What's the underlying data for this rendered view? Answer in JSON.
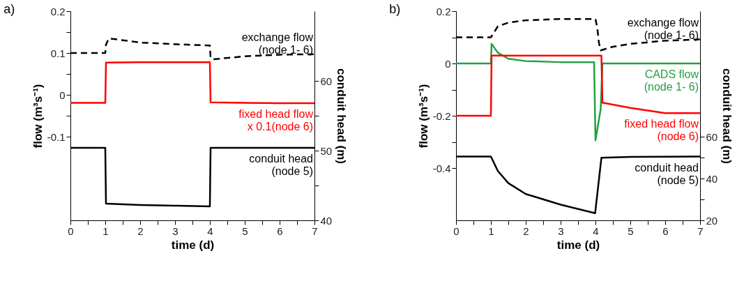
{
  "chart_data": [
    {
      "type": "line",
      "title": "a)",
      "xlabel": "time (d)",
      "ylabel": "flow (m³s⁻¹)",
      "y2label": "conduit head (m)",
      "grid": false,
      "xlim": [
        0,
        7
      ],
      "xticks": [
        0,
        {
          "value": 0.5,
          "label": null
        },
        1,
        {
          "value": 1.5,
          "label": null
        },
        2,
        {
          "value": 2.5,
          "label": null
        },
        3,
        {
          "value": 3.5,
          "label": null
        },
        4,
        {
          "value": 4.5,
          "label": null
        },
        5,
        {
          "value": 5.5,
          "label": null
        },
        6,
        {
          "value": 6.5,
          "label": null
        },
        7
      ],
      "ylim": [
        -0.3,
        0.2
      ],
      "yticks": [
        -0.1,
        {
          "value": -0.05,
          "label": null
        },
        0,
        {
          "value": 0.05,
          "label": null
        },
        0.1,
        {
          "value": 0.15,
          "label": null
        },
        0.2
      ],
      "y2lim": [
        40,
        70
      ],
      "y2ticks": [
        40,
        {
          "value": 45,
          "label": null
        },
        50,
        {
          "value": 55,
          "label": null
        },
        60
      ],
      "series": [
        {
          "name": "exchange flow\n(node 1- 6)",
          "color": "#000000",
          "line_style": "dashed",
          "x": [
            0,
            1,
            1.02,
            1.1,
            2,
            3,
            4,
            4.02,
            4.1,
            5,
            6,
            7
          ],
          "values": [
            0.1,
            0.1,
            0.12,
            0.135,
            0.125,
            0.121,
            0.118,
            0.088,
            0.085,
            0.092,
            0.096,
            0.097
          ]
        },
        {
          "name": "fixed head flow\nx 0.1(node 6)",
          "color": "#ff0000",
          "line_style": "solid",
          "x": [
            0,
            1,
            1.02,
            2,
            3,
            4,
            4.02,
            5,
            6,
            7
          ],
          "values": [
            -0.019,
            -0.019,
            0.077,
            0.078,
            0.078,
            0.078,
            -0.018,
            -0.019,
            -0.02,
            -0.02
          ]
        },
        {
          "name": "conduit head\n(node 5)",
          "color": "#000000",
          "line_style": "solid",
          "axis": "y2",
          "x": [
            0,
            1,
            1.02,
            2,
            3,
            4,
            4.02,
            5,
            6,
            7
          ],
          "values": [
            50.4,
            50.4,
            42.4,
            42.2,
            42.1,
            42.0,
            50.4,
            50.4,
            50.4,
            50.4
          ]
        }
      ]
    },
    {
      "type": "line",
      "title": "b)",
      "xlabel": "time (d)",
      "ylabel": "flow (m³s⁻¹)",
      "y2label": "conduit head (m)",
      "grid": false,
      "xlim": [
        0,
        7
      ],
      "xticks": [
        0,
        {
          "value": 0.5,
          "label": null
        },
        1,
        {
          "value": 1.5,
          "label": null
        },
        2,
        {
          "value": 2.5,
          "label": null
        },
        3,
        {
          "value": 3.5,
          "label": null
        },
        4,
        {
          "value": 4.5,
          "label": null
        },
        5,
        {
          "value": 5.5,
          "label": null
        },
        6,
        {
          "value": 6.5,
          "label": null
        },
        7
      ],
      "ylim": [
        -0.6,
        0.2
      ],
      "yticks": [
        -0.4,
        {
          "value": -0.3,
          "label": null
        },
        -0.2,
        {
          "value": -0.1,
          "label": null
        },
        0,
        {
          "value": 0.1,
          "label": null
        },
        0.2
      ],
      "y2lim": [
        20,
        120
      ],
      "y2ticks": [
        20,
        {
          "value": 30,
          "label": null
        },
        40,
        {
          "value": 50,
          "label": null
        },
        60
      ],
      "series": [
        {
          "name": "exchange flow\n(node 1- 6)",
          "color": "#000000",
          "line_style": "dashed",
          "x": [
            0,
            1,
            1.2,
            1.5,
            2,
            3,
            4,
            4.05,
            4.1,
            4.15,
            4.5,
            5,
            6,
            7
          ],
          "values": [
            0.1,
            0.1,
            0.142,
            0.156,
            0.165,
            0.17,
            0.17,
            0.138,
            0.078,
            0.05,
            0.064,
            0.075,
            0.087,
            0.092
          ]
        },
        {
          "name": "CADS flow\n(node 1- 6)",
          "color": "#22a045",
          "line_style": "solid",
          "x": [
            0,
            1,
            1.02,
            1.2,
            1.5,
            2,
            3,
            3.96,
            4.0,
            4.15,
            4.2,
            5,
            6,
            7
          ],
          "values": [
            0,
            0,
            0.075,
            0.041,
            0.018,
            0.009,
            0.005,
            0.005,
            -0.294,
            -0.174,
            0,
            0,
            0,
            0
          ]
        },
        {
          "name": "fixed head flow\n(node 6)",
          "color": "#ff0000",
          "line_style": "solid",
          "x": [
            0,
            1,
            1.02,
            2,
            3,
            4,
            4.17,
            4.2,
            5,
            6,
            7
          ],
          "values": [
            -0.2,
            -0.2,
            0.03,
            0.03,
            0.03,
            0.03,
            0.03,
            -0.15,
            -0.17,
            -0.19,
            -0.19
          ]
        },
        {
          "name": "conduit head\n(node 5)",
          "color": "#000000",
          "line_style": "solid",
          "axis": "y2",
          "x": [
            0,
            1,
            1.2,
            1.5,
            2,
            3,
            3.99,
            4.17,
            5,
            6,
            7
          ],
          "values": [
            50.5,
            50.5,
            43.6,
            37.8,
            32.6,
            27.5,
            23.4,
            49.9,
            50.3,
            50.4,
            50.5
          ]
        }
      ]
    }
  ]
}
